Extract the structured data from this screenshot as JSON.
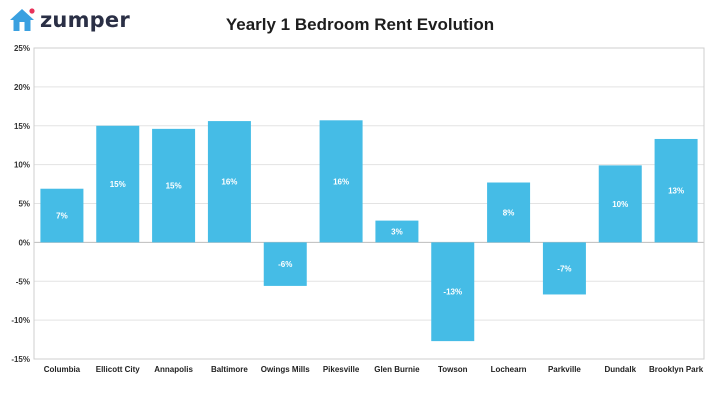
{
  "brand": {
    "name": "zumper",
    "icon": "house-icon",
    "color": "#3aa0e0",
    "accent": "#e8335a"
  },
  "chart_data": {
    "type": "bar",
    "title": "Yearly 1 Bedroom Rent Evolution",
    "xlabel": "",
    "ylabel": "",
    "categories": [
      "Columbia",
      "Ellicott City",
      "Annapolis",
      "Baltimore",
      "Owings Mills",
      "Pikesville",
      "Glen Burnie",
      "Towson",
      "Lochearn",
      "Parkville",
      "Dundalk",
      "Brooklyn Park"
    ],
    "series": [
      {
        "values": [
          6.9,
          15.0,
          14.6,
          15.6,
          -5.6,
          15.7,
          2.8,
          -12.7,
          7.7,
          -6.7,
          9.9,
          13.3
        ],
        "labels": [
          "7%",
          "15%",
          "15%",
          "16%",
          "-6%",
          "16%",
          "3%",
          "-13%",
          "8%",
          "-7%",
          "10%",
          "13%"
        ]
      }
    ],
    "yticks": [
      "-15%",
      "-10%",
      "-5%",
      "0%",
      "5%",
      "10%",
      "15%",
      "20%",
      "25%"
    ],
    "ylim": [
      -15,
      25
    ],
    "grid": true,
    "bar_color": "#45bce6"
  }
}
